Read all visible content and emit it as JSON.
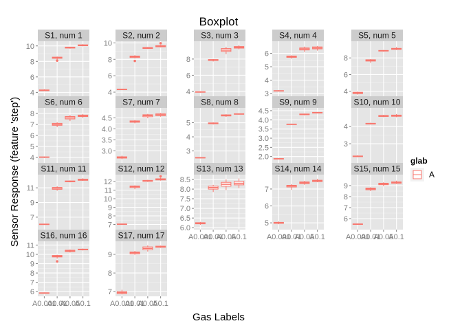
{
  "chart_data": {
    "type": "boxplot",
    "title": "Boxplot",
    "xlabel": "Gas Labels",
    "ylabel": "Sensor Response (feature 'step')",
    "categories": [
      "A0.001",
      "A0.01",
      "A0.05",
      "A0.1"
    ],
    "legend": {
      "title": "glab",
      "entries": [
        "A"
      ],
      "position": "right"
    },
    "colors": {
      "box": "#f8766d",
      "panel_bg": "#e5e5e5",
      "strip_bg": "#cccccc",
      "grid": "#ffffff"
    },
    "grid": true,
    "panels": [
      {
        "label": "S1, num 1",
        "ylim": [
          3.5,
          10.6
        ],
        "yticks": [
          4,
          6,
          8,
          10
        ],
        "boxes": [
          {
            "min": 4.15,
            "q1": 4.22,
            "median": 4.27,
            "q3": 4.32,
            "max": 4.4,
            "outliers": []
          },
          {
            "min": 8.25,
            "q1": 8.4,
            "median": 8.48,
            "q3": 8.55,
            "max": 8.62,
            "outliers": [
              8.1
            ]
          },
          {
            "min": 9.65,
            "q1": 9.72,
            "median": 9.78,
            "q3": 9.84,
            "max": 9.9,
            "outliers": []
          },
          {
            "min": 9.95,
            "q1": 10.02,
            "median": 10.08,
            "q3": 10.14,
            "max": 10.22,
            "outliers": []
          }
        ]
      },
      {
        "label": "S2, num 2",
        "ylim": [
          3.5,
          10.2
        ],
        "yticks": [
          4,
          6,
          8,
          10
        ],
        "boxes": [
          {
            "min": 4.25,
            "q1": 4.3,
            "median": 4.33,
            "q3": 4.36,
            "max": 4.42,
            "outliers": []
          },
          {
            "min": 8.1,
            "q1": 8.22,
            "median": 8.32,
            "q3": 8.4,
            "max": 8.5,
            "outliers": [
              7.8
            ]
          },
          {
            "min": 9.25,
            "q1": 9.32,
            "median": 9.38,
            "q3": 9.44,
            "max": 9.5,
            "outliers": []
          },
          {
            "min": 9.45,
            "q1": 9.52,
            "median": 9.58,
            "q3": 9.66,
            "max": 9.75,
            "outliers": [
              9.95
            ]
          }
        ]
      },
      {
        "label": "S3, num 3",
        "ylim": [
          3.4,
          10.2
        ],
        "yticks": [
          4,
          6,
          8
        ],
        "boxes": [
          {
            "min": 3.85,
            "q1": 3.9,
            "median": 3.93,
            "q3": 3.96,
            "max": 4.0,
            "outliers": []
          },
          {
            "min": 7.7,
            "q1": 7.82,
            "median": 7.88,
            "q3": 7.94,
            "max": 8.0,
            "outliers": []
          },
          {
            "min": 8.6,
            "q1": 8.95,
            "median": 9.1,
            "q3": 9.3,
            "max": 9.5,
            "outliers": []
          },
          {
            "min": 9.2,
            "q1": 9.35,
            "median": 9.45,
            "q3": 9.55,
            "max": 9.7,
            "outliers": []
          }
        ]
      },
      {
        "label": "S4, num 4",
        "ylim": [
          2.8,
          6.9
        ],
        "yticks": [
          3,
          4,
          5,
          6
        ],
        "boxes": [
          {
            "min": 3.15,
            "q1": 3.18,
            "median": 3.2,
            "q3": 3.22,
            "max": 3.25,
            "outliers": []
          },
          {
            "min": 5.6,
            "q1": 5.7,
            "median": 5.76,
            "q3": 5.8,
            "max": 5.85,
            "outliers": []
          },
          {
            "min": 6.1,
            "q1": 6.25,
            "median": 6.33,
            "q3": 6.4,
            "max": 6.5,
            "outliers": []
          },
          {
            "min": 6.2,
            "q1": 6.33,
            "median": 6.4,
            "q3": 6.48,
            "max": 6.55,
            "outliers": []
          }
        ]
      },
      {
        "label": "S5, num 5",
        "ylim": [
          3.4,
          10.0
        ],
        "yticks": [
          4,
          6,
          8
        ],
        "boxes": [
          {
            "min": 3.6,
            "q1": 3.72,
            "median": 3.8,
            "q3": 3.88,
            "max": 3.95,
            "outliers": []
          },
          {
            "min": 7.4,
            "q1": 7.62,
            "median": 7.7,
            "q3": 7.78,
            "max": 7.85,
            "outliers": []
          },
          {
            "min": 8.75,
            "q1": 8.82,
            "median": 8.86,
            "q3": 8.9,
            "max": 8.95,
            "outliers": []
          },
          {
            "min": 8.95,
            "q1": 9.02,
            "median": 9.08,
            "q3": 9.15,
            "max": 9.3,
            "outliers": []
          }
        ]
      },
      {
        "label": "S6, num 6",
        "ylim": [
          3.5,
          8.5
        ],
        "yticks": [
          4,
          5,
          6,
          7,
          8
        ],
        "boxes": [
          {
            "min": 3.95,
            "q1": 4.0,
            "median": 4.02,
            "q3": 4.05,
            "max": 4.08,
            "outliers": []
          },
          {
            "min": 6.75,
            "q1": 6.92,
            "median": 7.02,
            "q3": 7.1,
            "max": 7.2,
            "outliers": []
          },
          {
            "min": 7.3,
            "q1": 7.5,
            "median": 7.6,
            "q3": 7.72,
            "max": 7.85,
            "outliers": []
          },
          {
            "min": 7.6,
            "q1": 7.72,
            "median": 7.78,
            "q3": 7.85,
            "max": 7.95,
            "outliers": []
          }
        ]
      },
      {
        "label": "S7, num 7",
        "ylim": [
          2.45,
          4.95
        ],
        "yticks": [
          3.0,
          3.5,
          4.0,
          4.5
        ],
        "boxes": [
          {
            "min": 2.62,
            "q1": 2.67,
            "median": 2.7,
            "q3": 2.73,
            "max": 2.78,
            "outliers": []
          },
          {
            "min": 4.25,
            "q1": 4.3,
            "median": 4.33,
            "q3": 4.36,
            "max": 4.4,
            "outliers": []
          },
          {
            "min": 4.48,
            "q1": 4.55,
            "median": 4.6,
            "q3": 4.64,
            "max": 4.68,
            "outliers": []
          },
          {
            "min": 4.55,
            "q1": 4.6,
            "median": 4.64,
            "q3": 4.68,
            "max": 4.72,
            "outliers": []
          }
        ]
      },
      {
        "label": "S8, num 8",
        "ylim": [
          2.15,
          6.05
        ],
        "yticks": [
          3,
          4,
          5
        ],
        "boxes": [
          {
            "min": 2.48,
            "q1": 2.5,
            "median": 2.52,
            "q3": 2.54,
            "max": 2.56,
            "outliers": []
          },
          {
            "min": 4.88,
            "q1": 4.93,
            "median": 4.96,
            "q3": 4.99,
            "max": 5.02,
            "outliers": []
          },
          {
            "min": 5.42,
            "q1": 5.48,
            "median": 5.52,
            "q3": 5.56,
            "max": 5.6,
            "outliers": []
          },
          {
            "min": 5.58,
            "q1": 5.6,
            "median": 5.62,
            "q3": 5.64,
            "max": 5.66,
            "outliers": []
          }
        ]
      },
      {
        "label": "S9, num 9",
        "ylim": [
          1.65,
          4.65
        ],
        "yticks": [
          2.0,
          2.5,
          3.0,
          3.5,
          4.0,
          4.5
        ],
        "boxes": [
          {
            "min": 1.85,
            "q1": 1.87,
            "median": 1.88,
            "q3": 1.89,
            "max": 1.91,
            "outliers": []
          },
          {
            "min": 3.73,
            "q1": 3.75,
            "median": 3.76,
            "q3": 3.77,
            "max": 3.79,
            "outliers": []
          },
          {
            "min": 4.25,
            "q1": 4.28,
            "median": 4.3,
            "q3": 4.32,
            "max": 4.34,
            "outliers": []
          },
          {
            "min": 4.35,
            "q1": 4.37,
            "median": 4.39,
            "q3": 4.41,
            "max": 4.43,
            "outliers": []
          }
        ]
      },
      {
        "label": "S10, num 10",
        "ylim": [
          1.9,
          5.05
        ],
        "yticks": [
          3,
          4
        ],
        "boxes": [
          {
            "min": 2.23,
            "q1": 2.26,
            "median": 2.28,
            "q3": 2.3,
            "max": 2.33,
            "outliers": []
          },
          {
            "min": 4.1,
            "q1": 4.13,
            "median": 4.15,
            "q3": 4.17,
            "max": 4.2,
            "outliers": []
          },
          {
            "min": 4.52,
            "q1": 4.56,
            "median": 4.59,
            "q3": 4.62,
            "max": 4.65,
            "outliers": []
          },
          {
            "min": 4.52,
            "q1": 4.57,
            "median": 4.6,
            "q3": 4.64,
            "max": 4.7,
            "outliers": []
          }
        ]
      },
      {
        "label": "S11, num 11",
        "ylim": [
          5.3,
          12.8
        ],
        "yticks": [
          7,
          9,
          11
        ],
        "boxes": [
          {
            "min": 5.95,
            "q1": 6.0,
            "median": 6.03,
            "q3": 6.06,
            "max": 6.1,
            "outliers": []
          },
          {
            "min": 10.6,
            "q1": 10.8,
            "median": 10.95,
            "q3": 11.05,
            "max": 11.2,
            "outliers": []
          },
          {
            "min": 11.75,
            "q1": 11.82,
            "median": 11.88,
            "q3": 11.94,
            "max": 12.0,
            "outliers": []
          },
          {
            "min": 11.95,
            "q1": 12.02,
            "median": 12.1,
            "q3": 12.18,
            "max": 12.3,
            "outliers": []
          }
        ]
      },
      {
        "label": "S12, num 12",
        "ylim": [
          6.4,
          12.8
        ],
        "yticks": [
          7,
          8,
          9,
          10,
          11,
          12
        ],
        "boxes": [
          {
            "min": 6.95,
            "q1": 7.0,
            "median": 7.03,
            "q3": 7.06,
            "max": 7.1,
            "outliers": []
          },
          {
            "min": 11.1,
            "q1": 11.3,
            "median": 11.4,
            "q3": 11.48,
            "max": 11.55,
            "outliers": []
          },
          {
            "min": 11.95,
            "q1": 12.02,
            "median": 12.08,
            "q3": 12.13,
            "max": 12.2,
            "outliers": []
          },
          {
            "min": 12.1,
            "q1": 12.18,
            "median": 12.25,
            "q3": 12.32,
            "max": 12.45,
            "outliers": [
              12.6
            ]
          }
        ]
      },
      {
        "label": "S13, num 13",
        "ylim": [
          5.9,
          8.75
        ],
        "yticks": [
          6.0,
          6.5,
          7.0,
          7.5,
          8.0,
          8.5
        ],
        "boxes": [
          {
            "min": 6.15,
            "q1": 6.2,
            "median": 6.23,
            "q3": 6.26,
            "max": 6.3,
            "outliers": []
          },
          {
            "min": 7.85,
            "q1": 8.0,
            "median": 8.08,
            "q3": 8.15,
            "max": 8.22,
            "outliers": []
          },
          {
            "min": 7.95,
            "q1": 8.15,
            "median": 8.25,
            "q3": 8.35,
            "max": 8.5,
            "outliers": []
          },
          {
            "min": 8.05,
            "q1": 8.22,
            "median": 8.3,
            "q3": 8.4,
            "max": 8.55,
            "outliers": []
          }
        ]
      },
      {
        "label": "S14, num 14",
        "ylim": [
          4.6,
          7.85
        ],
        "yticks": [
          5,
          6,
          7
        ],
        "boxes": [
          {
            "min": 4.92,
            "q1": 4.97,
            "median": 5.0,
            "q3": 5.03,
            "max": 5.08,
            "outliers": []
          },
          {
            "min": 6.95,
            "q1": 7.12,
            "median": 7.18,
            "q3": 7.22,
            "max": 7.28,
            "outliers": []
          },
          {
            "min": 7.25,
            "q1": 7.32,
            "median": 7.37,
            "q3": 7.42,
            "max": 7.48,
            "outliers": []
          },
          {
            "min": 7.4,
            "q1": 7.44,
            "median": 7.48,
            "q3": 7.52,
            "max": 7.6,
            "outliers": []
          }
        ]
      },
      {
        "label": "S15, num 15",
        "ylim": [
          5.0,
          10.0
        ],
        "yticks": [
          6,
          7,
          8,
          9
        ],
        "boxes": [
          {
            "min": 5.45,
            "q1": 5.48,
            "median": 5.5,
            "q3": 5.52,
            "max": 5.55,
            "outliers": []
          },
          {
            "min": 8.5,
            "q1": 8.62,
            "median": 8.7,
            "q3": 8.78,
            "max": 8.85,
            "outliers": []
          },
          {
            "min": 8.95,
            "q1": 9.08,
            "median": 9.15,
            "q3": 9.22,
            "max": 9.3,
            "outliers": []
          },
          {
            "min": 9.15,
            "q1": 9.22,
            "median": 9.28,
            "q3": 9.34,
            "max": 9.45,
            "outliers": []
          }
        ]
      },
      {
        "label": "S16, num 16",
        "ylim": [
          5.5,
          11.4
        ],
        "yticks": [
          6,
          7,
          8,
          9,
          10,
          11
        ],
        "boxes": [
          {
            "min": 5.78,
            "q1": 5.82,
            "median": 5.85,
            "q3": 5.88,
            "max": 5.92,
            "outliers": []
          },
          {
            "min": 9.55,
            "q1": 9.72,
            "median": 9.8,
            "q3": 9.88,
            "max": 9.95,
            "outliers": [
              9.25
            ]
          },
          {
            "min": 10.2,
            "q1": 10.3,
            "median": 10.38,
            "q3": 10.45,
            "max": 10.52,
            "outliers": []
          },
          {
            "min": 10.42,
            "q1": 10.48,
            "median": 10.52,
            "q3": 10.56,
            "max": 10.62,
            "outliers": []
          }
        ]
      },
      {
        "label": "S17, num 17",
        "ylim": [
          6.75,
          9.7
        ],
        "yticks": [
          7,
          8,
          9
        ],
        "boxes": [
          {
            "min": 6.85,
            "q1": 6.9,
            "median": 6.95,
            "q3": 7.0,
            "max": 7.1,
            "outliers": []
          },
          {
            "min": 8.98,
            "q1": 9.03,
            "median": 9.08,
            "q3": 9.13,
            "max": 9.18,
            "outliers": []
          },
          {
            "min": 9.15,
            "q1": 9.25,
            "median": 9.32,
            "q3": 9.4,
            "max": 9.48,
            "outliers": []
          },
          {
            "min": 9.35,
            "q1": 9.38,
            "median": 9.41,
            "q3": 9.44,
            "max": 9.47,
            "outliers": []
          }
        ]
      }
    ]
  }
}
